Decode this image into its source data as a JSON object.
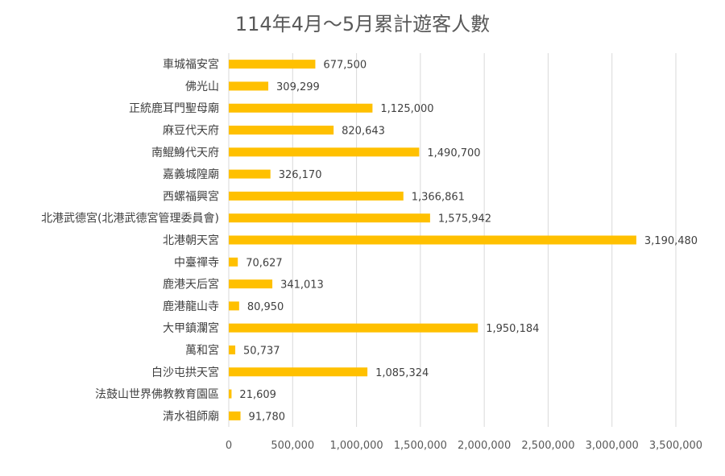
{
  "chart_data": {
    "type": "bar",
    "orientation": "horizontal",
    "title": "114年4月～5月累計遊客人數",
    "xlabel": "",
    "ylabel": "",
    "xlim": [
      0,
      3500000
    ],
    "x_ticks": [
      "0",
      "500,000",
      "1,000,000",
      "1,500,000",
      "2,000,000",
      "2,500,000",
      "3,000,000",
      "3,500,000"
    ],
    "grid": "vertical",
    "bar_color": "#FFC000",
    "categories": [
      "車城福安宮",
      "佛光山",
      "正統鹿耳門聖母廟",
      "麻豆代天府",
      "南鯤鯓代天府",
      "嘉義城隍廟",
      "西螺福興宮",
      "北港武德宮(北港武德宮管理委員會)",
      "北港朝天宮",
      "中臺禪寺",
      "鹿港天后宮",
      "鹿港龍山寺",
      "大甲鎮瀾宮",
      "萬和宮",
      "白沙屯拱天宮",
      "法鼓山世界佛教教育園區",
      "清水祖師廟"
    ],
    "values": [
      677500,
      309299,
      1125000,
      820643,
      1490700,
      326170,
      1366861,
      1575942,
      3190480,
      70627,
      341013,
      80950,
      1950184,
      50737,
      1085324,
      21609,
      91780
    ],
    "value_labels": [
      "677,500",
      "309,299",
      "1,125,000",
      "820,643",
      "1,490,700",
      "326,170",
      "1,366,861",
      "1,575,942",
      "3,190,480",
      "70,627",
      "341,013",
      "80,950",
      "1,950,184",
      "50,737",
      "1,085,324",
      "21,609",
      "91,780"
    ]
  }
}
